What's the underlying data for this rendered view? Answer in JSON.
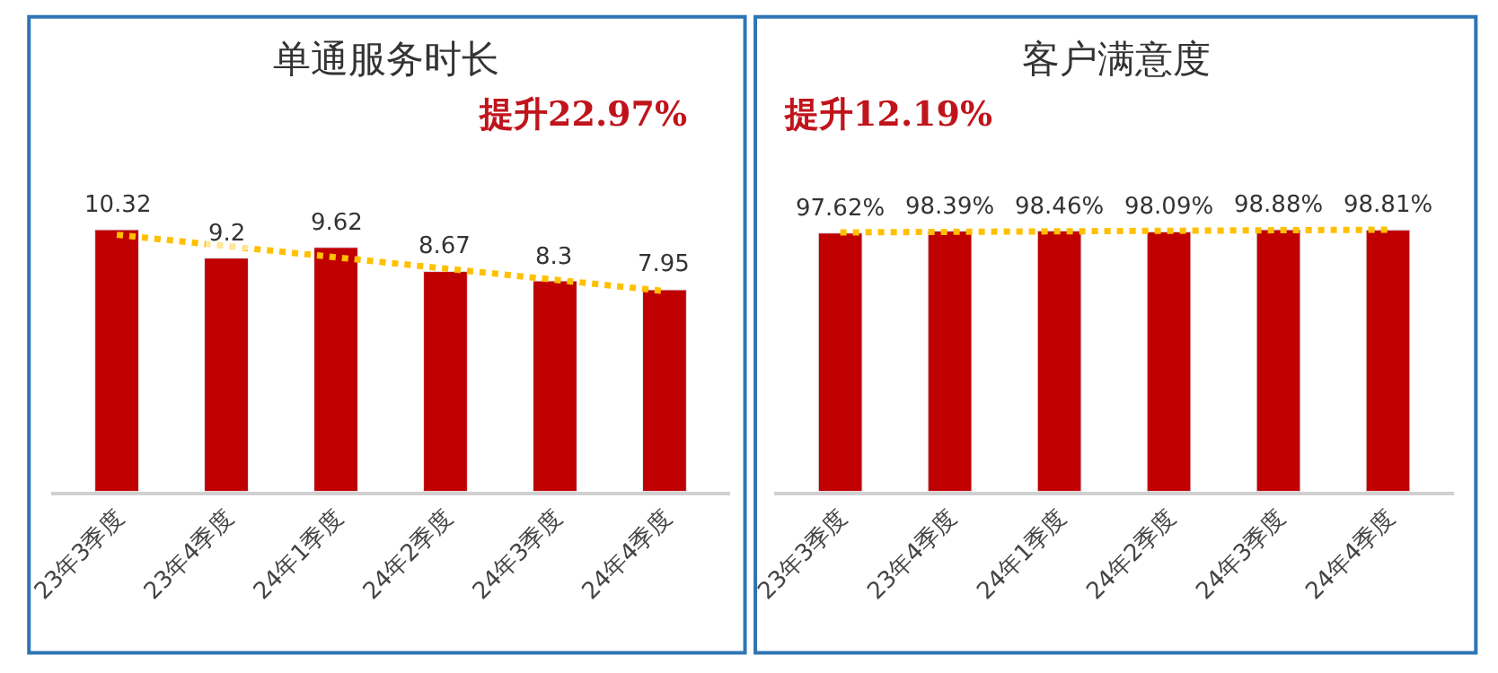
{
  "chart_data": [
    {
      "type": "bar",
      "title": "单通服务时长",
      "categories": [
        "23年3季度",
        "23年4季度",
        "24年1季度",
        "24年2季度",
        "24年3季度",
        "24年4季度"
      ],
      "series": [
        {
          "color": "#c00000",
          "values": [
            10.32,
            9.2,
            9.62,
            8.67,
            8.3,
            7.95
          ],
          "data_labels": true
        },
        {
          "type": "line",
          "color": "#ffc000",
          "line_style": "dotted",
          "x": [
            "23年3季度",
            "24年4季度"
          ],
          "values": [
            10.12,
            7.9
          ]
        }
      ],
      "tick_labels": "x",
      "annotations": [
        "提升22.97%"
      ]
    },
    {
      "type": "bar",
      "title": "客户满意度",
      "categories": [
        "23年3季度",
        "23年4季度",
        "24年1季度",
        "24年2季度",
        "24年3季度",
        "24年4季度"
      ],
      "series": [
        {
          "color": "#c00000",
          "values": [
            97.62,
            98.39,
            98.46,
            98.09,
            98.88,
            98.81
          ],
          "value_labels": [
            "97.62%",
            "98.39%",
            "98.46%",
            "98.09%",
            "98.88%",
            "98.81%"
          ]
        },
        {
          "type": "line",
          "color": "#ffc000",
          "line_style": "dotted",
          "x": [
            "23年3季度",
            "24年4季度"
          ],
          "values": [
            97.87,
            98.88
          ]
        }
      ],
      "tick_labels": "x",
      "annotations": [
        "提升12.19%"
      ]
    }
  ]
}
